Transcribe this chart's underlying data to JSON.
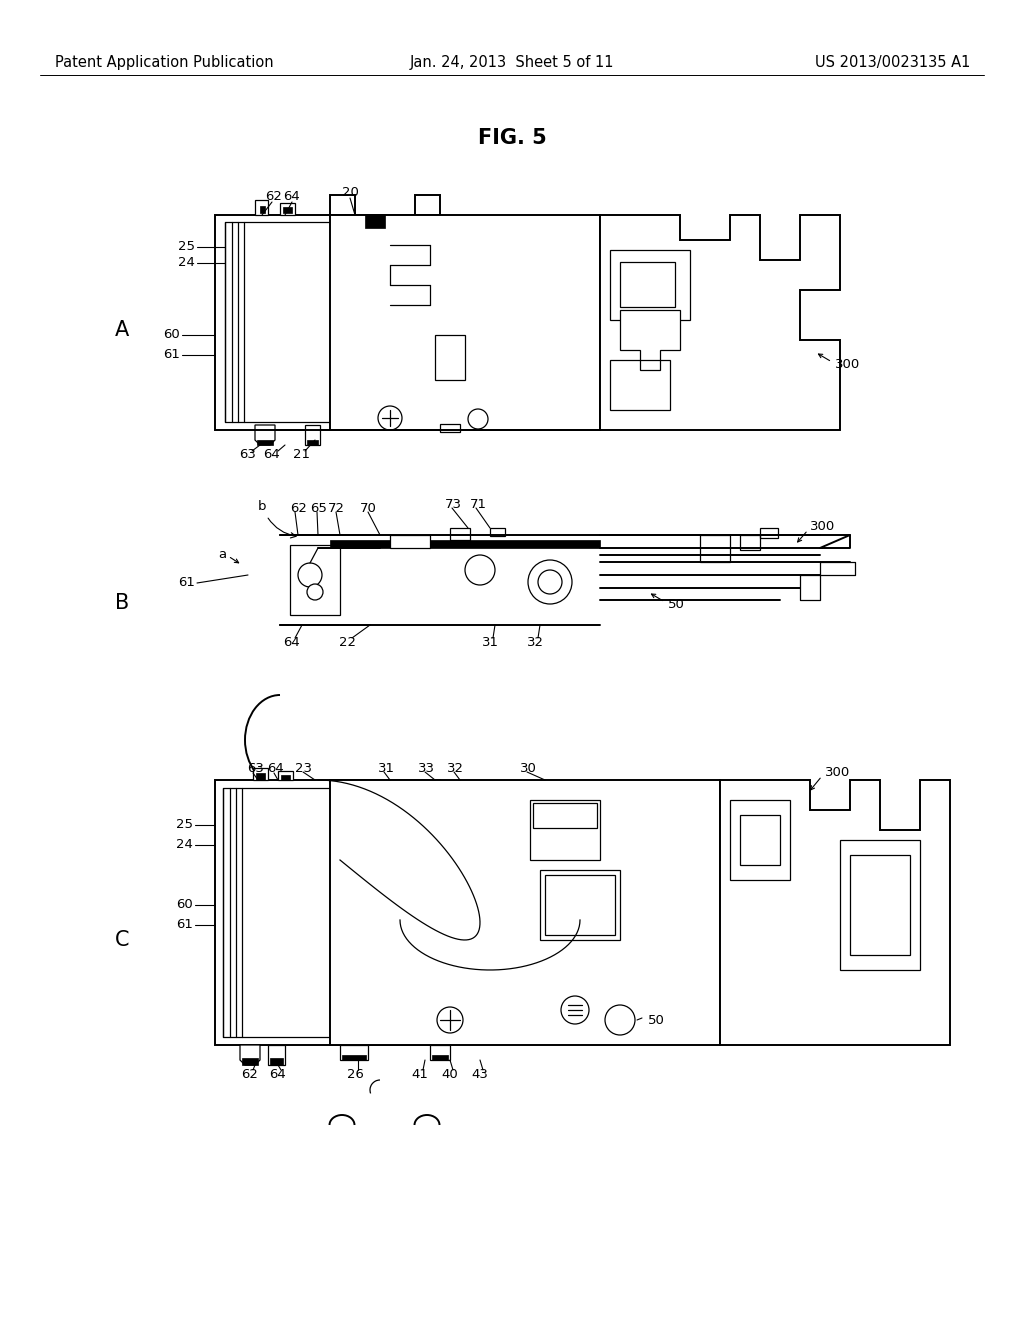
{
  "background_color": "#ffffff",
  "header_left": "Patent Application Publication",
  "header_center": "Jan. 24, 2013  Sheet 5 of 11",
  "header_right": "US 2013/0023135 A1",
  "fig_title": "FIG. 5",
  "header_fontsize": 10.5,
  "fig_title_fontsize": 15,
  "label_fontsize": 9.5,
  "panel_label_fontsize": 15,
  "lw_main": 1.4,
  "lw_thin": 0.9,
  "lw_med": 1.1
}
